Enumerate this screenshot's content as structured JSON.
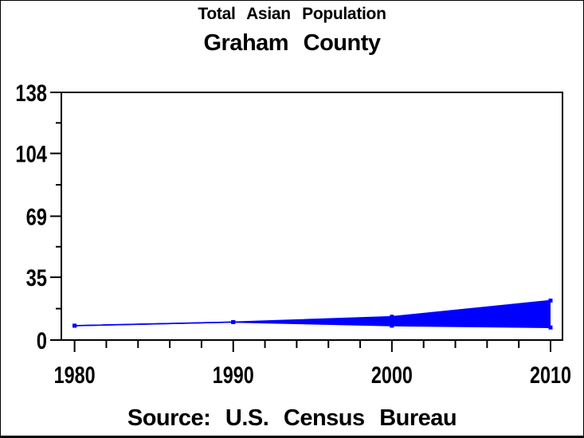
{
  "page": {
    "background": "#ffffff",
    "border_color": "#000000"
  },
  "chart_data": {
    "type": "area",
    "title": "Total Asian Population",
    "subtitle": "Graham County",
    "footnote": "Source: U.S. Census Bureau",
    "x": [
      1980,
      1990,
      2000,
      2010
    ],
    "series": [
      {
        "name": "asian-population-upper-line",
        "values": [
          8,
          10,
          13,
          22
        ]
      },
      {
        "name": "asian-population-lower-line",
        "values": [
          8,
          10,
          8,
          7
        ]
      }
    ],
    "fill_between_series": true,
    "marker": "square",
    "accent_color": "#0000ff",
    "text_color": "#000000",
    "frame_color": "#000000",
    "xlim": [
      1980,
      2010
    ],
    "ylim": [
      0,
      138
    ],
    "yticks": {
      "values": [
        0,
        35,
        69,
        104,
        138
      ],
      "labels": [
        "0",
        "35",
        "69",
        "104",
        "138"
      ]
    },
    "xticks": {
      "values": [
        1980,
        1990,
        2000,
        2010
      ],
      "labels": [
        "1980",
        "1990",
        "2000",
        "2010"
      ]
    },
    "x_minor_step_years": 2,
    "y_minor": "midpoints",
    "grid": false,
    "legend_position": "none",
    "frame": true
  }
}
